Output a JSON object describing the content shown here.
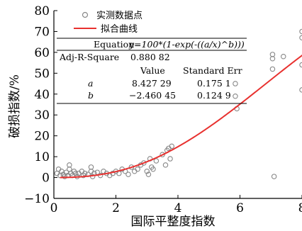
{
  "chart_data": {
    "type": "scatter",
    "xlabel": "国际平整度指数",
    "ylabel": "破损指数/%",
    "xlim": [
      0,
      8
    ],
    "ylim": [
      -10,
      80
    ],
    "x_ticks": [
      0,
      2,
      4,
      6,
      8
    ],
    "y_ticks": [
      -10,
      0,
      10,
      20,
      30,
      40,
      50,
      60,
      70,
      80
    ],
    "grid": false,
    "legend_position": "top-left",
    "series": [
      {
        "name": "实测数据点",
        "kind": "scatter",
        "color": "#888888",
        "points": [
          [
            0.1,
            2
          ],
          [
            0.15,
            4
          ],
          [
            0.2,
            1
          ],
          [
            0.25,
            3
          ],
          [
            0.3,
            1.5
          ],
          [
            0.35,
            0.5
          ],
          [
            0.4,
            2.5
          ],
          [
            0.45,
            1
          ],
          [
            0.5,
            6
          ],
          [
            0.5,
            4
          ],
          [
            0.55,
            2
          ],
          [
            0.6,
            1
          ],
          [
            0.65,
            3
          ],
          [
            0.7,
            2
          ],
          [
            0.75,
            0.5
          ],
          [
            0.8,
            2
          ],
          [
            0.9,
            3
          ],
          [
            0.95,
            1
          ],
          [
            1.0,
            2
          ],
          [
            1.1,
            1.5
          ],
          [
            1.2,
            5
          ],
          [
            1.2,
            3
          ],
          [
            1.25,
            0.5
          ],
          [
            1.3,
            2
          ],
          [
            1.4,
            2.5
          ],
          [
            1.5,
            1
          ],
          [
            1.6,
            3
          ],
          [
            1.7,
            2
          ],
          [
            1.8,
            1
          ],
          [
            1.9,
            2
          ],
          [
            2.0,
            3
          ],
          [
            2.1,
            2
          ],
          [
            2.2,
            4
          ],
          [
            2.3,
            3
          ],
          [
            2.4,
            1.5
          ],
          [
            2.5,
            5
          ],
          [
            2.6,
            3
          ],
          [
            2.7,
            4
          ],
          [
            2.8,
            6
          ],
          [
            2.9,
            7
          ],
          [
            3.0,
            3
          ],
          [
            3.05,
            1.5
          ],
          [
            3.1,
            9
          ],
          [
            3.15,
            5
          ],
          [
            3.2,
            4
          ],
          [
            3.3,
            8
          ],
          [
            3.5,
            11
          ],
          [
            3.6,
            6
          ],
          [
            3.65,
            13
          ],
          [
            3.7,
            14
          ],
          [
            3.75,
            9
          ],
          [
            3.8,
            15
          ],
          [
            5.85,
            45
          ],
          [
            5.85,
            39
          ],
          [
            5.9,
            33
          ],
          [
            7.05,
            59
          ],
          [
            7.05,
            57
          ],
          [
            7.05,
            52
          ],
          [
            7.1,
            0.5
          ],
          [
            7.4,
            58
          ],
          [
            8.0,
            70
          ],
          [
            8.0,
            67
          ],
          [
            8.0,
            54
          ],
          [
            8.0,
            42
          ]
        ]
      },
      {
        "name": "拟合曲线",
        "kind": "line",
        "color": "#e8312f",
        "equation": {
          "a": 8.42729,
          "b": -2.46045
        }
      }
    ],
    "fit_table": {
      "equation_label": "Equation",
      "equation_text": "y=100*(1-exp(-((a/x)^b)))",
      "adj_r2_label": "Adj-R-Square",
      "adj_r2_value": "0.880 82",
      "col_value": "Value",
      "col_stderr": "Standard Err",
      "rows": [
        {
          "param": "a",
          "value": "8.427 29",
          "stderr": "0.175 1"
        },
        {
          "param": "b",
          "value": "−2.460 45",
          "stderr": "0.124 9"
        }
      ]
    }
  }
}
